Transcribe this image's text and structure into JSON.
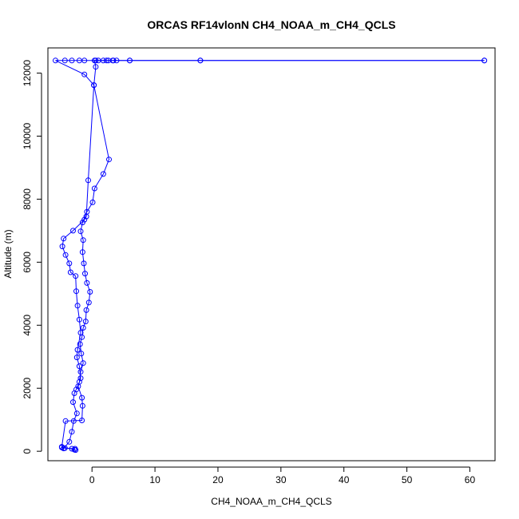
{
  "chart_data": {
    "type": "line",
    "title": "ORCAS RF14vlonN CH4_NOAA_m_CH4_QCLS",
    "xlabel": "CH4_NOAA_m_CH4_QCLS",
    "ylabel": "Altitude (m)",
    "xlim": [
      -7,
      64
    ],
    "ylim": [
      -300,
      12800
    ],
    "xticks": [
      0,
      10,
      20,
      30,
      40,
      50,
      60
    ],
    "yticks": [
      0,
      2000,
      4000,
      6000,
      8000,
      10000,
      12000
    ],
    "grid": false,
    "series_color": "#0000ff",
    "series": [
      {
        "marker": "open-circle",
        "points": [
          [
            -2.8,
            50
          ],
          [
            -2.6,
            40
          ],
          [
            -3.2,
            80
          ],
          [
            -4.8,
            120
          ],
          [
            -4.5,
            90
          ],
          [
            -3.6,
            300
          ],
          [
            -3.2,
            620
          ],
          [
            -2.9,
            960
          ],
          [
            -2.4,
            1200
          ],
          [
            -3.0,
            1560
          ],
          [
            -2.8,
            1840
          ],
          [
            -2.5,
            1960
          ],
          [
            -2.0,
            2200
          ],
          [
            -1.8,
            2520
          ],
          [
            -1.4,
            2800
          ],
          [
            -1.7,
            3100
          ],
          [
            -1.9,
            3400
          ],
          [
            -1.6,
            3620
          ],
          [
            -1.4,
            3920
          ],
          [
            -1.0,
            4120
          ],
          [
            -0.9,
            4480
          ],
          [
            -0.5,
            4720
          ],
          [
            -0.3,
            5060
          ],
          [
            -0.8,
            5340
          ],
          [
            -1.1,
            5640
          ],
          [
            -1.3,
            5960
          ],
          [
            -1.5,
            6320
          ],
          [
            -1.4,
            6700
          ],
          [
            -1.8,
            6980
          ],
          [
            -1.5,
            7260
          ],
          [
            -0.8,
            7600
          ],
          [
            0.1,
            7900
          ],
          [
            0.4,
            8340
          ],
          [
            1.8,
            8800
          ],
          [
            2.7,
            9260
          ],
          [
            0.3,
            11620
          ],
          [
            -1.2,
            11960
          ],
          [
            -5.8,
            12400
          ],
          [
            -4.3,
            12400
          ],
          [
            -3.2,
            12400
          ],
          [
            -2.0,
            12400
          ],
          [
            -1.2,
            12400
          ],
          [
            0.6,
            12400
          ],
          [
            1.8,
            12400
          ],
          [
            2.6,
            12400
          ],
          [
            3.3,
            12400
          ],
          [
            3.9,
            12400
          ],
          [
            6.0,
            12400
          ],
          [
            17.2,
            12400
          ],
          [
            62.3,
            12400
          ]
        ]
      },
      {
        "marker": "open-circle",
        "points": [
          [
            62.3,
            12400
          ],
          [
            17.2,
            12400
          ],
          [
            6.0,
            12400
          ],
          [
            3.4,
            12400
          ],
          [
            2.3,
            12400
          ],
          [
            1.0,
            12400
          ],
          [
            0.4,
            12400
          ],
          [
            0.6,
            12200
          ],
          [
            0.3,
            11620
          ],
          [
            -0.6,
            8600
          ],
          [
            -0.9,
            7450
          ],
          [
            -1.2,
            7350
          ],
          [
            -3.0,
            7000
          ],
          [
            -4.5,
            6750
          ],
          [
            -4.7,
            6500
          ],
          [
            -4.2,
            6230
          ],
          [
            -3.6,
            5960
          ],
          [
            -3.4,
            5680
          ],
          [
            -2.6,
            5560
          ],
          [
            -2.5,
            5080
          ],
          [
            -2.3,
            4620
          ],
          [
            -2.0,
            4180
          ],
          [
            -1.8,
            3760
          ],
          [
            -2.3,
            3220
          ],
          [
            -2.4,
            2980
          ],
          [
            -2.0,
            2700
          ],
          [
            -1.8,
            2320
          ],
          [
            -2.2,
            2060
          ],
          [
            -1.6,
            1700
          ],
          [
            -1.5,
            1440
          ],
          [
            -1.6,
            980
          ],
          [
            -4.2,
            960
          ],
          [
            -4.8,
            140
          ],
          [
            -4.3,
            100
          ],
          [
            -2.7,
            80
          ]
        ]
      }
    ]
  }
}
